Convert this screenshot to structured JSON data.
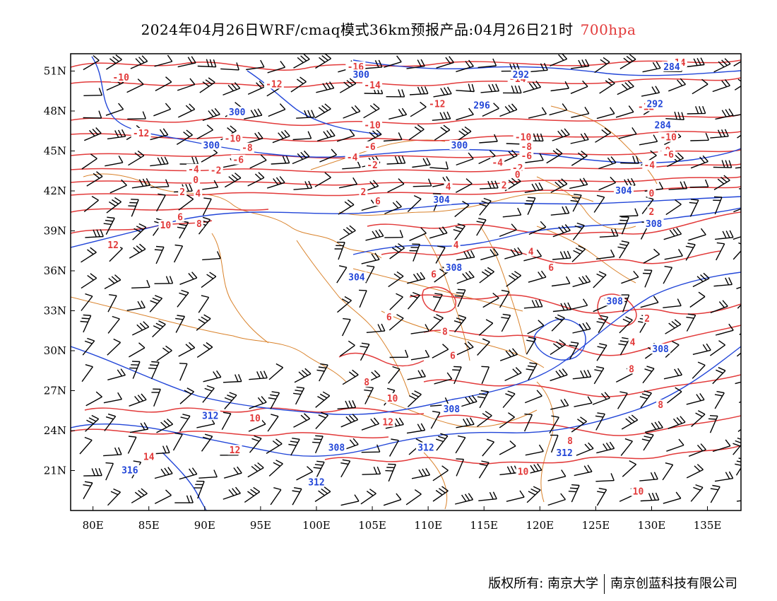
{
  "title": {
    "main": "2024年04月26日WRF/cmaq模式36km预报产品:04月26日21时",
    "level": "700hpa"
  },
  "colors": {
    "temperature": "#e23a3a",
    "height": "#2246d8",
    "boundary": "#d9822b",
    "barb": "#000000"
  },
  "lat_ticks": [
    "51N",
    "48N",
    "45N",
    "42N",
    "39N",
    "36N",
    "33N",
    "30N",
    "27N",
    "24N",
    "21N"
  ],
  "lon_ticks": [
    "80E",
    "85E",
    "90E",
    "95E",
    "100E",
    "105E",
    "110E",
    "115E",
    "120E",
    "125E",
    "130E",
    "135E"
  ],
  "temp_labels": [
    {
      "t": "-16",
      "lon": 103.5,
      "lat": 51.3
    },
    {
      "t": "-14",
      "lon": 132.3,
      "lat": 51.6
    },
    {
      "t": "-10",
      "lon": 82.5,
      "lat": 50.5
    },
    {
      "t": "-12",
      "lon": 96.2,
      "lat": 50.0
    },
    {
      "t": "-14",
      "lon": 105.0,
      "lat": 49.9
    },
    {
      "t": "-14",
      "lon": 118.0,
      "lat": 50.4
    },
    {
      "t": "-12",
      "lon": 110.8,
      "lat": 48.5
    },
    {
      "t": "-12",
      "lon": 129.5,
      "lat": 48.3
    },
    {
      "t": "-12",
      "lon": 84.3,
      "lat": 46.3
    },
    {
      "t": "-10",
      "lon": 92.5,
      "lat": 45.9
    },
    {
      "t": "-10",
      "lon": 105.0,
      "lat": 46.9
    },
    {
      "t": "-10",
      "lon": 118.5,
      "lat": 46.0
    },
    {
      "t": "-10",
      "lon": 131.5,
      "lat": 46.0
    },
    {
      "t": "-8",
      "lon": 93.8,
      "lat": 45.2
    },
    {
      "t": "-6",
      "lon": 104.8,
      "lat": 45.3
    },
    {
      "t": "-8",
      "lon": 118.8,
      "lat": 45.3
    },
    {
      "t": "-6",
      "lon": 93.0,
      "lat": 44.3
    },
    {
      "t": "-4",
      "lon": 103.2,
      "lat": 44.5
    },
    {
      "t": "-6",
      "lon": 118.8,
      "lat": 44.6
    },
    {
      "t": "-8",
      "lon": 131.2,
      "lat": 45.0
    },
    {
      "t": "-6",
      "lon": 131.5,
      "lat": 44.7
    },
    {
      "t": "-4",
      "lon": 89.0,
      "lat": 43.6
    },
    {
      "t": "-2",
      "lon": 91.0,
      "lat": 43.5
    },
    {
      "t": "-2",
      "lon": 105.0,
      "lat": 43.9
    },
    {
      "t": "-4",
      "lon": 116.2,
      "lat": 44.1
    },
    {
      "t": "-2",
      "lon": 118.0,
      "lat": 43.7
    },
    {
      "t": "-4",
      "lon": 129.8,
      "lat": 43.9
    },
    {
      "t": "0",
      "lon": 89.2,
      "lat": 42.8
    },
    {
      "t": "0",
      "lon": 118.0,
      "lat": 43.2
    },
    {
      "t": "2",
      "lon": 88.0,
      "lat": 41.9
    },
    {
      "t": "4",
      "lon": 89.4,
      "lat": 41.8
    },
    {
      "t": "2",
      "lon": 104.2,
      "lat": 41.9
    },
    {
      "t": "4",
      "lon": 111.8,
      "lat": 42.3
    },
    {
      "t": "2",
      "lon": 116.8,
      "lat": 42.4
    },
    {
      "t": "0",
      "lon": 130.0,
      "lat": 41.8
    },
    {
      "t": "2",
      "lon": 130.0,
      "lat": 40.4
    },
    {
      "t": "4",
      "lon": 130.6,
      "lat": 39.5
    },
    {
      "t": "6",
      "lon": 87.8,
      "lat": 40.0
    },
    {
      "t": "8",
      "lon": 89.5,
      "lat": 39.5
    },
    {
      "t": "10",
      "lon": 86.5,
      "lat": 39.4
    },
    {
      "t": "6",
      "lon": 105.5,
      "lat": 41.2
    },
    {
      "t": "12",
      "lon": 81.8,
      "lat": 37.9
    },
    {
      "t": "4",
      "lon": 112.5,
      "lat": 37.9
    },
    {
      "t": "4",
      "lon": 119.2,
      "lat": 37.4
    },
    {
      "t": "6",
      "lon": 121.0,
      "lat": 36.2
    },
    {
      "t": "6",
      "lon": 110.5,
      "lat": 35.7
    },
    {
      "t": "6",
      "lon": 106.5,
      "lat": 32.5
    },
    {
      "t": "8",
      "lon": 111.5,
      "lat": 31.4
    },
    {
      "t": "2",
      "lon": 129.6,
      "lat": 32.4
    },
    {
      "t": "4",
      "lon": 128.3,
      "lat": 30.6
    },
    {
      "t": "6",
      "lon": 112.2,
      "lat": 29.6
    },
    {
      "t": "8",
      "lon": 128.2,
      "lat": 28.6
    },
    {
      "t": "8",
      "lon": 104.5,
      "lat": 27.6
    },
    {
      "t": "10",
      "lon": 106.8,
      "lat": 26.4
    },
    {
      "t": "8",
      "lon": 130.8,
      "lat": 25.9
    },
    {
      "t": "10",
      "lon": 94.5,
      "lat": 24.9
    },
    {
      "t": "12",
      "lon": 106.4,
      "lat": 24.6
    },
    {
      "t": "12",
      "lon": 92.7,
      "lat": 22.5
    },
    {
      "t": "14",
      "lon": 85.0,
      "lat": 22.0
    },
    {
      "t": "8",
      "lon": 122.7,
      "lat": 23.2
    },
    {
      "t": "10",
      "lon": 118.5,
      "lat": 20.9
    },
    {
      "t": "10",
      "lon": 128.8,
      "lat": 19.4
    }
  ],
  "height_labels": [
    {
      "t": "300",
      "lon": 104.0,
      "lat": 50.7
    },
    {
      "t": "292",
      "lon": 118.3,
      "lat": 50.7
    },
    {
      "t": "284",
      "lon": 131.8,
      "lat": 51.3
    },
    {
      "t": "300",
      "lon": 92.9,
      "lat": 47.9
    },
    {
      "t": "296",
      "lon": 114.8,
      "lat": 48.4
    },
    {
      "t": "292",
      "lon": 130.3,
      "lat": 48.5
    },
    {
      "t": "284",
      "lon": 131.0,
      "lat": 46.9
    },
    {
      "t": "300",
      "lon": 90.6,
      "lat": 45.4
    },
    {
      "t": "300",
      "lon": 112.8,
      "lat": 45.4
    },
    {
      "t": "304",
      "lon": 111.2,
      "lat": 41.3
    },
    {
      "t": "304",
      "lon": 127.5,
      "lat": 42.0
    },
    {
      "t": "308",
      "lon": 130.2,
      "lat": 39.5
    },
    {
      "t": "304",
      "lon": 103.6,
      "lat": 35.5
    },
    {
      "t": "308",
      "lon": 112.3,
      "lat": 36.2
    },
    {
      "t": "308",
      "lon": 126.7,
      "lat": 33.7
    },
    {
      "t": "308",
      "lon": 130.8,
      "lat": 30.1
    },
    {
      "t": "312",
      "lon": 90.5,
      "lat": 25.1
    },
    {
      "t": "308",
      "lon": 112.1,
      "lat": 25.6
    },
    {
      "t": "308",
      "lon": 101.8,
      "lat": 22.7
    },
    {
      "t": "312",
      "lon": 109.8,
      "lat": 22.7
    },
    {
      "t": "312",
      "lon": 122.2,
      "lat": 22.3
    },
    {
      "t": "316",
      "lon": 83.3,
      "lat": 21.0
    },
    {
      "t": "312",
      "lon": 100.0,
      "lat": 20.1
    }
  ],
  "footer": {
    "left": "版权所有: 南京大学",
    "right": "南京创蓝科技有限公司"
  }
}
